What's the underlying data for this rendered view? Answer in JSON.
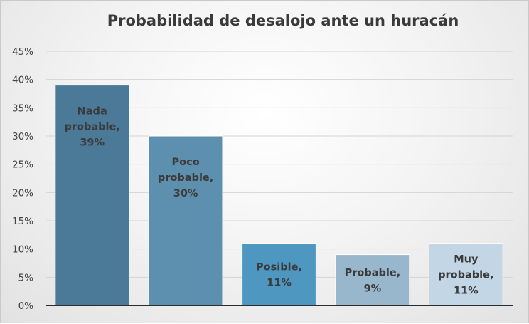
{
  "chart_data": {
    "type": "bar",
    "title": "Probabilidad de desalojo ante un huracán",
    "categories": [
      "Nada probable",
      "Poco probable",
      "Posible",
      "Probable",
      "Muy probable"
    ],
    "values": [
      39,
      30,
      11,
      9,
      11
    ],
    "data_labels": [
      [
        "Nada",
        "probable,",
        "39%"
      ],
      [
        "Poco",
        "probable,",
        "30%"
      ],
      [
        "Posible,",
        "11%"
      ],
      [
        "Probable,",
        "9%"
      ],
      [
        "Muy",
        "probable,",
        "11%"
      ]
    ],
    "bar_colors": [
      "#4a7a98",
      "#5d8fae",
      "#4e97c0",
      "#98b6cc",
      "#c3d6e5"
    ],
    "ylim": [
      0,
      45
    ],
    "yticks": [
      0,
      5,
      10,
      15,
      20,
      25,
      30,
      35,
      40,
      45
    ],
    "ytick_labels": [
      "0%",
      "5%",
      "10%",
      "15%",
      "20%",
      "25%",
      "30%",
      "35%",
      "40%",
      "45%"
    ],
    "grid": true,
    "legend": "none"
  }
}
